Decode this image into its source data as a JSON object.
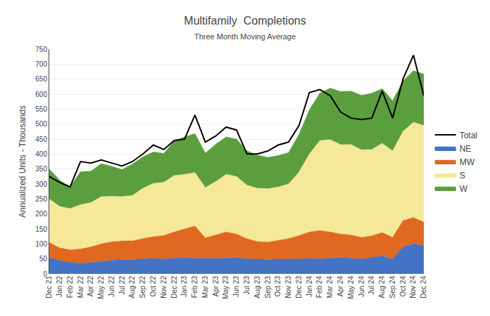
{
  "chart_data": {
    "type": "area",
    "stacked": true,
    "title": "Multifamily  Completions",
    "subtitle": "Three Month Moving Average",
    "ylabel": "Annualized Units - Thousands",
    "ylim": [
      0,
      750
    ],
    "yticks": [
      0,
      50,
      100,
      150,
      200,
      250,
      300,
      350,
      400,
      450,
      500,
      550,
      600,
      650,
      700,
      750
    ],
    "grid": true,
    "legend": "right",
    "categories": [
      "Dec 21",
      "Jan 22",
      "Feb 22",
      "Mar 22",
      "Apr 22",
      "May 22",
      "Jun 22",
      "Jul 22",
      "Aug 22",
      "Sep 22",
      "Oct 22",
      "Nov 22",
      "Dec 22",
      "Jan 23",
      "Feb 23",
      "Mar 23",
      "Apr 23",
      "May 23",
      "Jun 23",
      "Jul 23",
      "Aug 23",
      "Sep 23",
      "Oct 23",
      "Nov 23",
      "Dec 23",
      "Jan 24",
      "Feb 24",
      "Mar 24",
      "Apr 24",
      "May 24",
      "Jun 24",
      "Jul 24",
      "Aug 24",
      "Sep 24",
      "Oct 24",
      "Nov 24",
      "Dec 24"
    ],
    "series": [
      {
        "name": "NE",
        "type": "area",
        "color": "#4472C4",
        "values": [
          55,
          45,
          38,
          35,
          38,
          42,
          45,
          48,
          48,
          50,
          52,
          50,
          52,
          55,
          52,
          52,
          52,
          52,
          55,
          50,
          50,
          48,
          50,
          50,
          50,
          52,
          50,
          52,
          55,
          52,
          50,
          55,
          60,
          50,
          90,
          100,
          95
        ]
      },
      {
        "name": "MW",
        "type": "area",
        "color": "#E06820",
        "values": [
          50,
          42,
          42,
          48,
          52,
          58,
          62,
          62,
          62,
          68,
          72,
          78,
          88,
          95,
          108,
          68,
          78,
          88,
          78,
          68,
          58,
          58,
          62,
          68,
          78,
          88,
          95,
          88,
          78,
          78,
          72,
          72,
          78,
          72,
          88,
          88,
          78
        ]
      },
      {
        "name": "S",
        "type": "area",
        "color": "#F5E898",
        "values": [
          145,
          138,
          138,
          148,
          148,
          158,
          152,
          148,
          152,
          168,
          178,
          178,
          188,
          182,
          178,
          168,
          178,
          192,
          192,
          178,
          178,
          178,
          178,
          182,
          212,
          260,
          300,
          308,
          298,
          302,
          292,
          288,
          298,
          288,
          298,
          318,
          322
        ]
      },
      {
        "name": "W",
        "type": "area",
        "color": "#5B9E3E",
        "values": [
          100,
          88,
          72,
          110,
          105,
          110,
          100,
          90,
          105,
          105,
          105,
          96,
          115,
          125,
          130,
          115,
          125,
          125,
          125,
          115,
          110,
          105,
          105,
          105,
          125,
          148,
          158,
          172,
          178,
          178,
          182,
          188,
          182,
          168,
          168,
          172,
          172
        ]
      },
      {
        "name": "Total",
        "type": "line",
        "color": "#000000",
        "values": [
          325,
          305,
          290,
          375,
          370,
          380,
          370,
          360,
          375,
          400,
          430,
          415,
          445,
          450,
          530,
          440,
          460,
          490,
          480,
          400,
          400,
          410,
          430,
          440,
          495,
          605,
          615,
          595,
          540,
          520,
          515,
          520,
          610,
          520,
          650,
          730,
          595
        ]
      }
    ]
  }
}
